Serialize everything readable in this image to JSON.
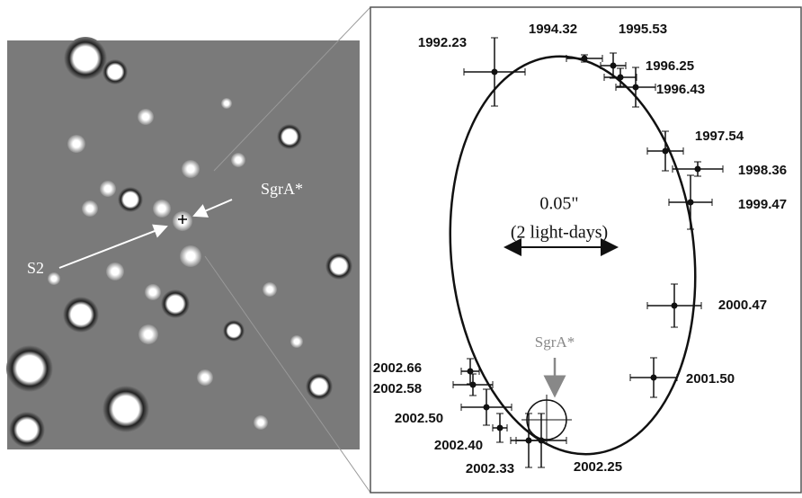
{
  "left_panel": {
    "labels": {
      "star": "S2",
      "black_hole": "SgrA*"
    }
  },
  "orbit_panel": {
    "scale": {
      "size": "0.05\"",
      "distance": "(2 light-days)"
    },
    "center_label": "SgrA*",
    "epochs": [
      "1992.23",
      "1994.32",
      "1995.53",
      "1996.25",
      "1996.43",
      "1997.54",
      "1998.36",
      "1999.47",
      "2000.47",
      "2001.50",
      "2002.66",
      "2002.58",
      "2002.50",
      "2002.40",
      "2002.33",
      "2002.25"
    ]
  }
}
